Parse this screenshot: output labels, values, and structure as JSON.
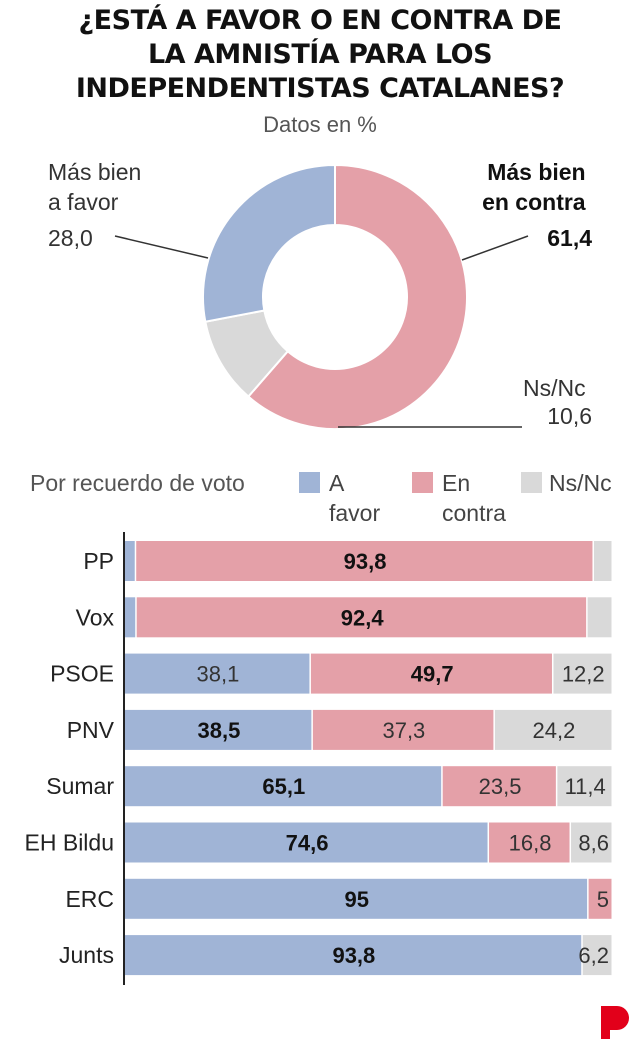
{
  "header": {
    "title_lines": [
      "¿ESTÁ A FAVOR O EN CONTRA DE",
      "LA AMNISTÍA PARA LOS",
      "INDEPENDENTISTAS CATALANES?"
    ],
    "subtitle": "Datos en %"
  },
  "colors": {
    "favor": "#a0b4d6",
    "contra": "#e4a0a8",
    "nsnc": "#d9d9d9"
  },
  "chart_data": [
    {
      "type": "pie",
      "slices": [
        {
          "label_lines": [
            "Más bien",
            "a favor"
          ],
          "value": 28.0,
          "value_text": "28,0"
        },
        {
          "label_lines": [
            "Más bien",
            "en contra"
          ],
          "value": 61.4,
          "value_text": "61,4"
        },
        {
          "label_lines": [
            "Ns/Nc"
          ],
          "value": 10.6,
          "value_text": "10,6"
        }
      ]
    },
    {
      "type": "bar",
      "stacked": true,
      "orientation": "horizontal",
      "legend_title": "Por recuerdo de voto",
      "legend_placement": "top",
      "series": [
        {
          "name_lines": [
            "A",
            "favor"
          ]
        },
        {
          "name_lines": [
            "En",
            "contra"
          ]
        },
        {
          "name_lines": [
            "Ns/Nc"
          ]
        }
      ],
      "categories": [
        "PP",
        "Vox",
        "PSOE",
        "PNV",
        "Sumar",
        "EH Bildu",
        "ERC",
        "Junts"
      ],
      "rows": [
        {
          "values": [
            2.3,
            93.8,
            3.9
          ],
          "labels": [
            "2,3",
            "93,8",
            ""
          ],
          "bold": 1
        },
        {
          "values": [
            2.4,
            92.4,
            5.2
          ],
          "labels": [
            "2,4",
            "92,4",
            ""
          ],
          "bold": 1
        },
        {
          "values": [
            38.1,
            49.7,
            12.2
          ],
          "labels": [
            "38,1",
            "49,7",
            "12,2"
          ],
          "bold": 1
        },
        {
          "values": [
            38.5,
            37.3,
            24.2
          ],
          "labels": [
            "38,5",
            "37,3",
            "24,2"
          ],
          "bold": 0
        },
        {
          "values": [
            65.1,
            23.5,
            11.4
          ],
          "labels": [
            "65,1",
            "23,5",
            "11,4"
          ],
          "bold": 0
        },
        {
          "values": [
            74.6,
            16.8,
            8.6
          ],
          "labels": [
            "74,6",
            "16,8",
            "8,6"
          ],
          "bold": 0
        },
        {
          "values": [
            95,
            5,
            0
          ],
          "labels": [
            "95",
            "5",
            ""
          ],
          "bold": 0
        },
        {
          "values": [
            93.8,
            0,
            6.2
          ],
          "labels": [
            "93,8",
            "",
            "6,2"
          ],
          "bold": 0
        }
      ],
      "xlim": [
        0,
        100
      ]
    }
  ],
  "brand": {
    "logo_icon": "publico-p-logo-icon"
  }
}
